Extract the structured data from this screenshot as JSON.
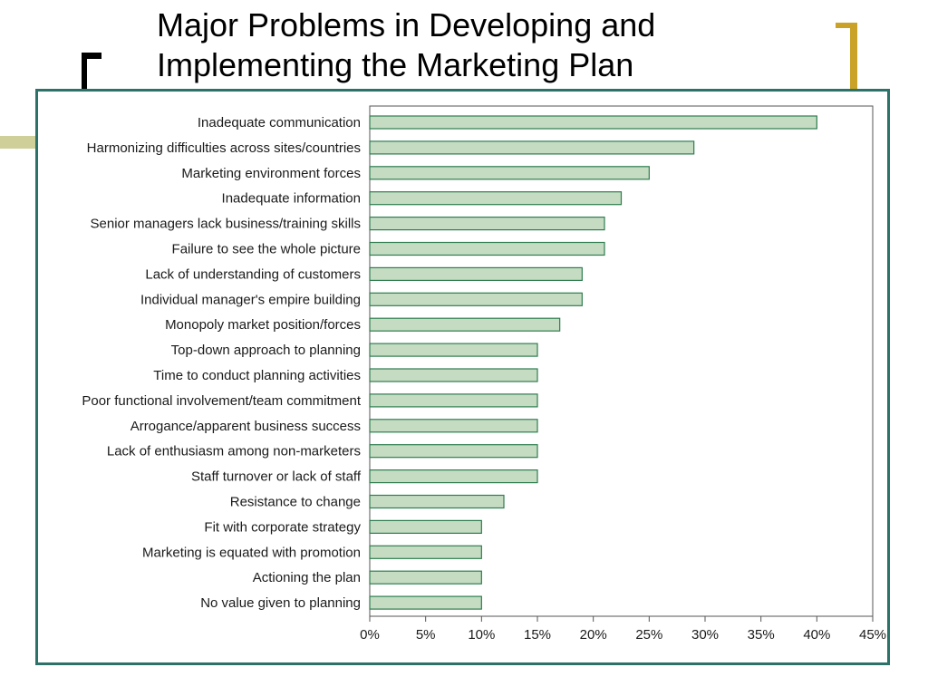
{
  "slide": {
    "title_line1": "Major Problems in Developing and",
    "title_line2": "Implementing the Marketing Plan"
  },
  "colors": {
    "frame": "#2d7269",
    "bar_fill": "#c5dcc3",
    "bar_stroke": "#2e7d4f",
    "accent_gold": "#c9a227",
    "accent_olive": "#cfcf99"
  },
  "chart_data": {
    "type": "bar",
    "orientation": "horizontal",
    "title": "",
    "xlabel": "",
    "ylabel": "",
    "xlim": [
      0,
      45
    ],
    "x_ticks": [
      "0%",
      "5%",
      "10%",
      "15%",
      "20%",
      "25%",
      "30%",
      "35%",
      "40%",
      "45%"
    ],
    "grid": false,
    "legend": "none",
    "categories": [
      "Inadequate communication",
      "Harmonizing difficulties across sites/countries",
      "Marketing environment forces",
      "Inadequate information",
      "Senior managers lack business/training skills",
      "Failure to see the whole picture",
      "Lack of understanding of customers",
      "Individual manager's empire building",
      "Monopoly market position/forces",
      "Top-down approach to planning",
      "Time to conduct planning activities",
      "Poor functional involvement/team commitment",
      "Arrogance/apparent business success",
      "Lack of enthusiasm among non-marketers",
      "Staff turnover or lack of staff",
      "Resistance to change",
      "Fit with corporate strategy",
      "Marketing is equated with promotion",
      "Actioning the plan",
      "No value given to planning"
    ],
    "values": [
      40,
      29,
      25,
      22.5,
      21,
      21,
      19,
      19,
      17,
      15,
      15,
      15,
      15,
      15,
      15,
      12,
      10,
      10,
      10,
      10
    ]
  }
}
